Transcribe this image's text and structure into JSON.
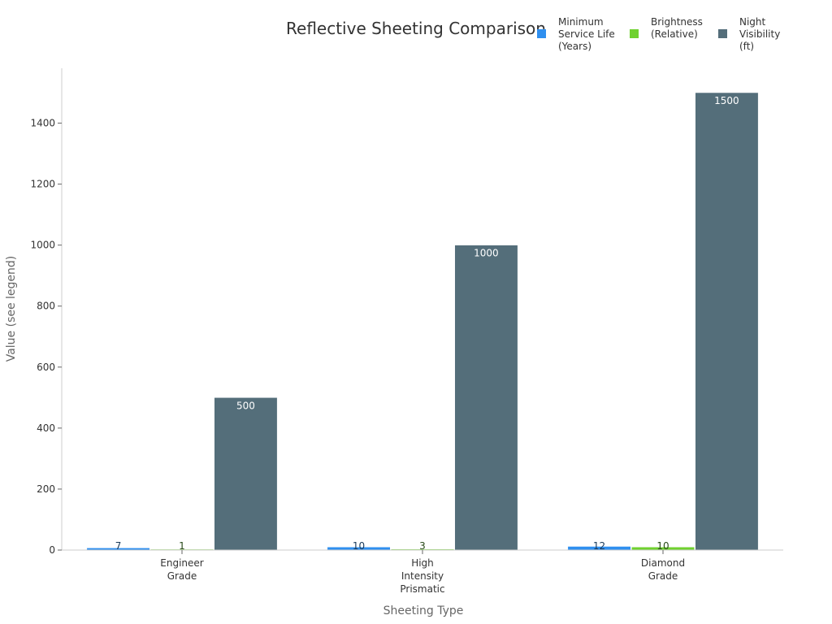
{
  "chart_data": {
    "type": "bar",
    "title": "Reflective Sheeting Comparison",
    "xlabel": "Sheeting Type",
    "ylabel": "Value (see legend)",
    "categories": [
      "Engineer Grade",
      "High Intensity Prismatic",
      "Diamond Grade"
    ],
    "ylim": [
      0,
      1580
    ],
    "yticks": [
      0,
      200,
      400,
      600,
      800,
      1000,
      1200,
      1400
    ],
    "legend_position": "top-right",
    "grid": false,
    "series": [
      {
        "name": "Minimum Service Life (Years)",
        "color": "#2f8fef",
        "values": [
          7,
          10,
          12
        ],
        "labels": [
          "7",
          "10",
          "12"
        ],
        "label_color": "#1a3a5a"
      },
      {
        "name": "Brightness (Relative)",
        "color": "#6fd12f",
        "values": [
          1,
          3,
          10
        ],
        "labels": [
          "1",
          "3",
          "10"
        ],
        "label_color": "#2a4a1a"
      },
      {
        "name": "Night Visibility (ft)",
        "color": "#546e7a",
        "values": [
          500,
          1000,
          1500
        ],
        "labels": [
          "500",
          "1000",
          "1500"
        ],
        "label_color": "#ffffff"
      }
    ]
  }
}
